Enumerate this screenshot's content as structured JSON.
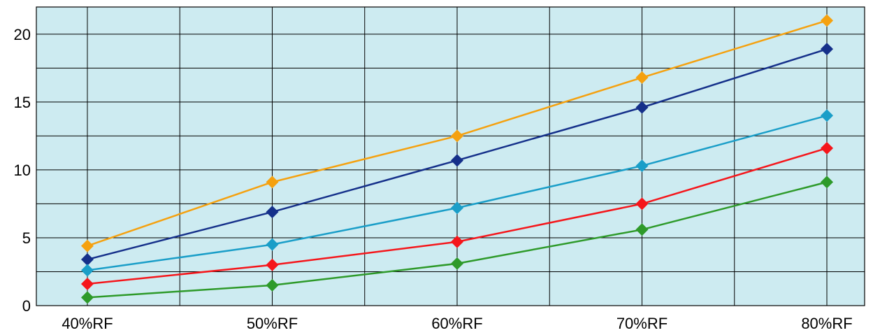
{
  "chart_data": {
    "type": "line",
    "x": [
      "40%RF",
      "50%RF",
      "60%RF",
      "70%RF",
      "80%RF"
    ],
    "ylim": [
      0,
      22
    ],
    "yticks": [
      0,
      5,
      10,
      15,
      20
    ],
    "grid": true,
    "plot_background": "#cdebf1",
    "grid_color": "#000000",
    "marker": "diamond",
    "series": [
      {
        "color": "#f5a10f",
        "values": [
          4.4,
          9.1,
          12.5,
          16.8,
          21.0
        ]
      },
      {
        "color": "#15308a",
        "values": [
          3.4,
          6.9,
          10.7,
          14.6,
          18.9
        ]
      },
      {
        "color": "#1a9ec8",
        "values": [
          2.6,
          4.5,
          7.2,
          10.3,
          14.0
        ]
      },
      {
        "color": "#f5161b",
        "values": [
          1.6,
          3.0,
          4.7,
          7.5,
          11.6
        ]
      },
      {
        "color": "#2e9a2a",
        "values": [
          0.6,
          1.5,
          3.1,
          5.6,
          9.1
        ]
      }
    ]
  }
}
